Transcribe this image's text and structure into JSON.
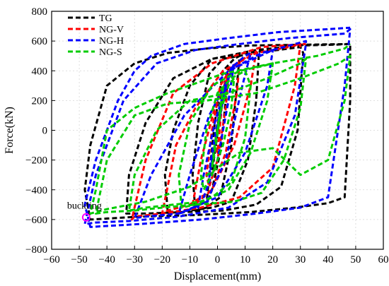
{
  "chart_data": {
    "type": "line",
    "title": "",
    "xlabel": "Displacement(mm)",
    "ylabel": "Force(kN)",
    "xlim": [
      -60,
      60
    ],
    "ylim": [
      -800,
      800
    ],
    "xticks": [
      -60,
      -50,
      -40,
      -30,
      -20,
      -10,
      0,
      10,
      20,
      30,
      40,
      50,
      60
    ],
    "yticks": [
      -800,
      -600,
      -400,
      -200,
      0,
      200,
      400,
      600,
      800
    ],
    "grid": true,
    "legend_position": "top-left",
    "series": [
      {
        "name": "TG",
        "color": "#000000",
        "x": [
          0,
          1,
          2,
          1,
          -1,
          -2,
          -1,
          1,
          3,
          4,
          3,
          1,
          -2,
          -4,
          -3,
          -1,
          2,
          6,
          8,
          7,
          5,
          1,
          -4,
          -8,
          -9,
          -7,
          -3,
          2,
          8,
          13,
          15,
          14,
          11,
          5,
          -2,
          -10,
          -18,
          -19,
          -16,
          -10,
          -2,
          10,
          22,
          30,
          31,
          29,
          23,
          14,
          2,
          -12,
          -26,
          -33,
          -32,
          -26,
          -16,
          -2,
          14,
          30,
          42,
          48,
          48,
          46,
          40,
          28,
          12,
          -8,
          -28,
          -46,
          -48,
          -46,
          -40,
          -30,
          -18,
          -4,
          12,
          30,
          48
        ],
        "y": [
          0,
          180,
          300,
          100,
          -150,
          -300,
          -100,
          150,
          350,
          420,
          200,
          -150,
          -400,
          -500,
          -300,
          50,
          400,
          480,
          500,
          300,
          -100,
          -450,
          -520,
          -540,
          -300,
          50,
          380,
          480,
          500,
          520,
          520,
          200,
          -200,
          -480,
          -520,
          -540,
          -550,
          -300,
          0,
          300,
          480,
          520,
          540,
          560,
          520,
          0,
          -380,
          -500,
          -540,
          -550,
          -560,
          -560,
          -300,
          50,
          350,
          480,
          540,
          570,
          575,
          580,
          200,
          -450,
          -490,
          -520,
          -550,
          -570,
          -580,
          -600,
          -400,
          -100,
          300,
          450,
          520,
          550,
          570,
          575,
          580
        ]
      },
      {
        "name": "NG-V",
        "color": "#ff0000",
        "x": [
          0,
          1,
          0,
          -1,
          0,
          2,
          4,
          3,
          0,
          -3,
          -4,
          -2,
          1,
          5,
          8,
          7,
          3,
          -2,
          -7,
          -9,
          -6,
          -1,
          5,
          11,
          14,
          12,
          6,
          -2,
          -10,
          -18,
          -20,
          -15,
          -8,
          2,
          14,
          26,
          30,
          28,
          20,
          8,
          -6,
          -20,
          -30,
          -31,
          -26,
          -16,
          -2,
          16,
          32
        ],
        "y": [
          0,
          120,
          50,
          -100,
          -150,
          250,
          380,
          150,
          -200,
          -380,
          -300,
          0,
          300,
          420,
          460,
          250,
          -150,
          -400,
          -480,
          -500,
          -200,
          150,
          420,
          500,
          530,
          300,
          -100,
          -400,
          -500,
          -540,
          -560,
          -100,
          150,
          400,
          520,
          560,
          580,
          300,
          -250,
          -450,
          -520,
          -560,
          -580,
          -600,
          -200,
          250,
          450,
          560,
          580
        ]
      },
      {
        "name": "NG-H",
        "color": "#0000ff",
        "x": [
          0,
          2,
          3,
          1,
          -2,
          -3,
          -2,
          1,
          5,
          6,
          4,
          0,
          -5,
          -7,
          -5,
          -1,
          5,
          10,
          12,
          9,
          3,
          -4,
          -12,
          -14,
          -10,
          -3,
          6,
          16,
          20,
          18,
          10,
          0,
          -14,
          -26,
          -30,
          -24,
          -12,
          4,
          20,
          32,
          32,
          28,
          18,
          4,
          -14,
          -32,
          -44,
          -48,
          -44,
          -34,
          -22,
          -8,
          8,
          26,
          46,
          48,
          46,
          40,
          30,
          14,
          -6,
          -28,
          -46,
          -48,
          -44,
          -36,
          -30,
          -24,
          -12,
          4,
          22,
          40,
          48
        ],
        "y": [
          0,
          200,
          320,
          100,
          -200,
          -320,
          -150,
          150,
          400,
          450,
          200,
          -200,
          -450,
          -520,
          -300,
          50,
          420,
          500,
          520,
          300,
          -200,
          -480,
          -550,
          -560,
          -300,
          100,
          420,
          520,
          540,
          300,
          -150,
          -450,
          -560,
          -580,
          -590,
          -300,
          100,
          400,
          540,
          600,
          580,
          100,
          -350,
          -520,
          -580,
          -610,
          -620,
          -630,
          -300,
          200,
          450,
          540,
          580,
          620,
          650,
          680,
          300,
          -450,
          -520,
          -560,
          -600,
          -630,
          -650,
          -500,
          -200,
          200,
          400,
          500,
          580,
          620,
          660,
          680,
          690
        ]
      },
      {
        "name": "NG-S",
        "color": "#00cc00",
        "x": [
          0,
          1,
          2,
          1,
          -1,
          -2,
          -1,
          1,
          4,
          6,
          5,
          2,
          -2,
          -5,
          -6,
          -4,
          0,
          5,
          10,
          12,
          10,
          5,
          -2,
          -8,
          -13,
          -14,
          -10,
          -2,
          8,
          16,
          20,
          18,
          12,
          4,
          -6,
          -16,
          -26,
          -32,
          -30,
          -22,
          -10,
          4,
          18,
          30,
          32,
          30,
          24,
          16,
          6,
          -8,
          -20,
          -30,
          -40,
          -44,
          -40,
          -30,
          -18,
          -4,
          14,
          30,
          44,
          48,
          46,
          40,
          30,
          20,
          8,
          -10,
          -26,
          -40,
          -46,
          -44,
          -40,
          -30,
          -18,
          2,
          20,
          36,
          46,
          48
        ],
        "y": [
          0,
          150,
          280,
          100,
          -150,
          -250,
          -100,
          120,
          300,
          350,
          150,
          -100,
          -300,
          -400,
          -300,
          0,
          250,
          350,
          400,
          300,
          -50,
          -350,
          -450,
          -500,
          -520,
          -300,
          50,
          300,
          400,
          430,
          450,
          200,
          -150,
          -400,
          -480,
          -500,
          -520,
          -540,
          -300,
          0,
          200,
          250,
          350,
          450,
          480,
          150,
          -200,
          -420,
          -480,
          -500,
          -520,
          -540,
          -550,
          -560,
          -200,
          100,
          180,
          200,
          250,
          350,
          450,
          500,
          200,
          -200,
          -300,
          -120,
          -150,
          -380,
          -480,
          -530,
          -560,
          -400,
          0,
          150,
          250,
          380,
          450,
          500,
          550,
          580
        ]
      }
    ],
    "annotations": [
      {
        "text": "buckling",
        "x": -47.5,
        "y": -585,
        "marker_color": "#ff00ff"
      }
    ]
  }
}
